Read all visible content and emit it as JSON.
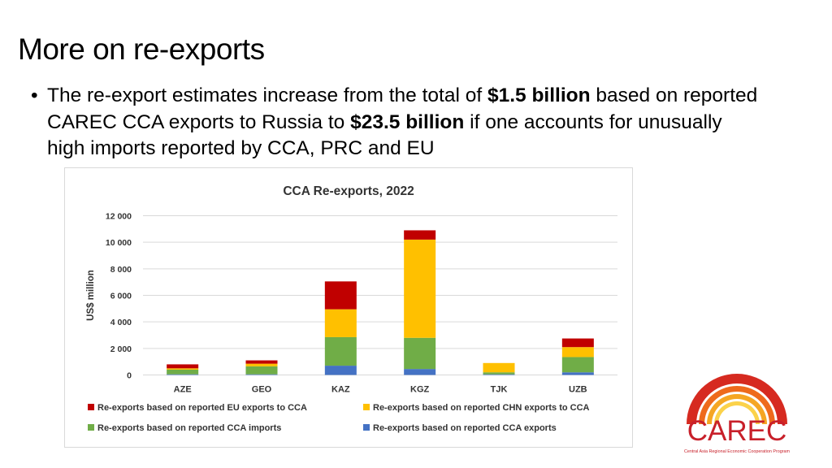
{
  "slide": {
    "title": "More on re-exports",
    "bullet": {
      "part1": "The re-export estimates increase from the total of ",
      "bold1": "$1.5 billion",
      "part2": " based on reported CAREC CCA exports to Russia to ",
      "bold2": "$23.5 billion",
      "part3": " if one accounts for unusually high imports reported by CCA, PRC and EU"
    }
  },
  "logo": {
    "text": "CAREC",
    "tagline": "Central Asia Regional Economic Cooperation Program",
    "color": "#c8202a"
  },
  "chart_data": {
    "type": "bar",
    "stacked": true,
    "title": "CCA Re-exports, 2022",
    "xlabel": "",
    "ylabel": "US$ million",
    "ylim": [
      0,
      12000
    ],
    "yticks": [
      0,
      2000,
      4000,
      6000,
      8000,
      10000,
      12000
    ],
    "ytick_labels": [
      "0",
      "2 000",
      "4 000",
      "6 000",
      "8 000",
      "10 000",
      "12 000"
    ],
    "grid": true,
    "legend_position": "bottom",
    "categories": [
      "AZE",
      "GEO",
      "KAZ",
      "KGZ",
      "TJK",
      "UZB"
    ],
    "series": [
      {
        "name": "Re-exports based on reported CCA exports",
        "color": "#4472c4",
        "values": [
          50,
          50,
          700,
          450,
          50,
          200
        ]
      },
      {
        "name": "Re-exports based on reported CCA imports",
        "color": "#70ad47",
        "values": [
          350,
          600,
          2150,
          2350,
          150,
          1150
        ]
      },
      {
        "name": "Re-exports based on reported CHN exports to CCA",
        "color": "#ffc000",
        "values": [
          100,
          200,
          2100,
          7400,
          700,
          750
        ]
      },
      {
        "name": "Re-exports based on reported EU exports to CCA",
        "color": "#c00000",
        "values": [
          300,
          250,
          2100,
          700,
          0,
          650
        ]
      }
    ],
    "legend_order": [
      3,
      2,
      1,
      0
    ]
  }
}
